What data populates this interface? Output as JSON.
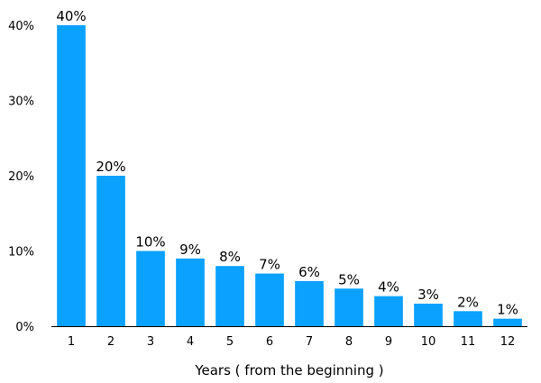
{
  "chart_data": {
    "type": "bar",
    "categories": [
      "1",
      "2",
      "3",
      "4",
      "5",
      "6",
      "7",
      "8",
      "9",
      "10",
      "11",
      "12"
    ],
    "values": [
      40,
      20,
      10,
      9,
      8,
      7,
      6,
      5,
      4,
      3,
      2,
      1
    ],
    "data_labels": [
      "40%",
      "20%",
      "10%",
      "9%",
      "8%",
      "7%",
      "6%",
      "5%",
      "4%",
      "3%",
      "2%",
      "1%"
    ],
    "title": "",
    "xlabel": "Years ( from the beginning )",
    "ylabel": "",
    "ylim": [
      0,
      40
    ],
    "yticks": [
      0,
      10,
      20,
      30,
      40
    ],
    "ytick_labels": [
      "0%",
      "10%",
      "20%",
      "30%",
      "40%"
    ],
    "grid": false,
    "bar_color": "#0aa1ff"
  }
}
